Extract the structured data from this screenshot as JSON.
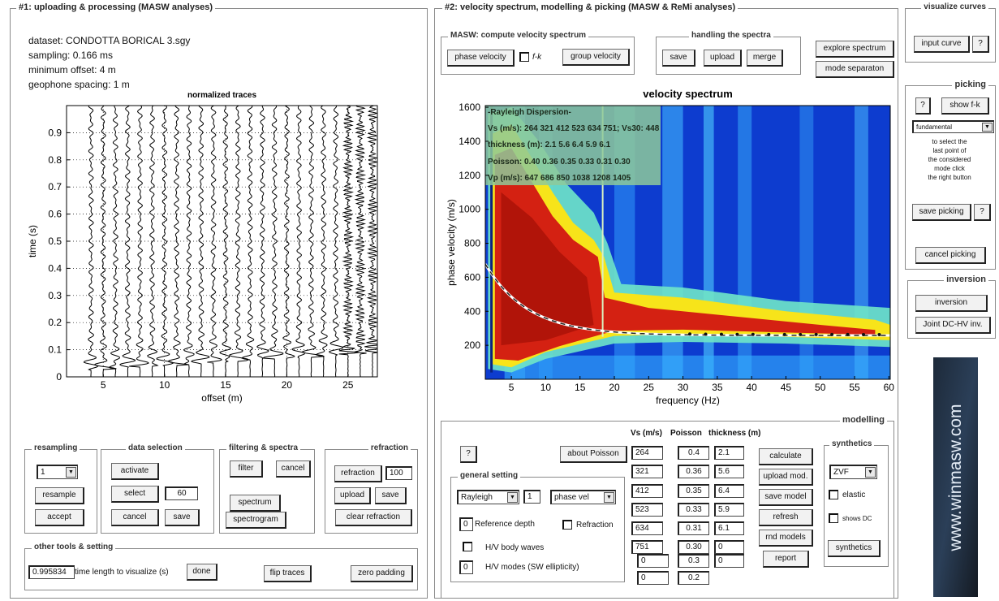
{
  "panel1": {
    "title": "#1: uploading & processing (MASW analyses)",
    "info": [
      "dataset: CONDOTTA BORICAL 3.sgy",
      "sampling: 0.166 ms",
      "minimum offset: 4 m",
      "geophone spacing: 1 m"
    ],
    "traces_plot": {
      "title": "normalized traces",
      "xlabel": "offset (m)",
      "ylabel": "time (s)",
      "xlim": [
        2,
        27.4
      ],
      "ylim": [
        0,
        1
      ],
      "xticks": [
        5,
        10,
        15,
        20,
        25
      ],
      "yticks": [
        0,
        0.1,
        0.2,
        0.3,
        0.4,
        0.5,
        0.6,
        0.7,
        0.8,
        0.9
      ]
    },
    "resampling": {
      "title": "resampling",
      "value": "1",
      "resample": "resample",
      "accept": "accept"
    },
    "data_selection": {
      "title": "data selection",
      "activate": "activate",
      "select": "select",
      "value": "60",
      "cancel": "cancel",
      "save": "save"
    },
    "filtering": {
      "title": "filtering & spectra",
      "filter": "filter",
      "cancel": "cancel",
      "spectrum": "spectrum",
      "spectrogram": "spectrogram"
    },
    "refraction": {
      "title": "refraction",
      "refraction": "refraction",
      "value": "100",
      "upload": "upload",
      "save": "save",
      "clear": "clear refraction"
    },
    "other_tools": {
      "title": "other tools & setting",
      "value": "0.995834",
      "label": "time length to visualize (s)",
      "done": "done",
      "flip": "flip traces",
      "zero_padding": "zero padding"
    }
  },
  "panel2": {
    "title": "#2: velocity spectrum, modelling & picking (MASW & ReMi analyses)",
    "masw": {
      "title": "MASW: compute velocity spectrum",
      "phase": "phase velocity",
      "fk": "f-k",
      "group": "group velocity"
    },
    "handling": {
      "title": "handling the spectra",
      "save": "save",
      "upload": "upload",
      "merge": "merge"
    },
    "explore": "explore spectrum",
    "mode_separation": "mode separaton",
    "spectrum_plot": {
      "title": "velocity spectrum",
      "xlabel": "frequency (Hz)",
      "ylabel": "phase velocity (m/s)",
      "xlim": [
        1.2,
        60.2
      ],
      "ylim": [
        0,
        1610
      ],
      "xticks": [
        5,
        10,
        15,
        20,
        25,
        30,
        35,
        40,
        45,
        50,
        55,
        60
      ],
      "yticks": [
        200,
        400,
        600,
        800,
        1000,
        1200,
        1400,
        1600
      ],
      "legend": [
        "-Rayleigh Dispersion-",
        "Vs (m/s): 264  321  412  523  634  751; Vs30: 448",
        "thickness (m): 2.1   5.6   6.4   5.9   6.1",
        "Poisson: 0.40  0.36  0.35  0.33  0.31  0.30",
        "Vp (m/s): 647  686  850 1038 1208 1405"
      ]
    },
    "modelling": {
      "title": "modelling",
      "help": "?",
      "about_poisson": "about Poisson",
      "headers": [
        "Vs (m/s)",
        "Poisson",
        "thickness (m)"
      ],
      "vs": [
        "264",
        "321",
        "412",
        "523",
        "634",
        "751",
        "0",
        "0"
      ],
      "poisson": [
        "0.4",
        "0.36",
        "0.35",
        "0.33",
        "0.31",
        "0.30",
        "0.3",
        "0.2"
      ],
      "thickness": [
        "2.1",
        "5.6",
        "6.4",
        "5.9",
        "6.1",
        "0",
        "0"
      ],
      "general": {
        "title": "general setting",
        "wave": "Rayleigh",
        "mode": "1",
        "quantity": "phase vel",
        "ref_depth_value": "0",
        "ref_depth": "Reference depth",
        "refraction": "Refraction",
        "hv_body": "H/V body waves",
        "hv_modes_value": "0",
        "hv_modes": "H/V modes (SW ellipticity)"
      },
      "actions": [
        "calculate",
        "upload mod.",
        "save model",
        "refresh",
        "rnd models",
        "report"
      ],
      "synthetics": {
        "title": "synthetics",
        "component": "ZVF",
        "elastic": "elastic",
        "shows_dc": "shows DC",
        "button": "synthetics"
      }
    }
  },
  "panel3": {
    "visualize": {
      "title": "visualize curves",
      "input": "input curve",
      "help": "?"
    },
    "picking": {
      "title": "picking",
      "help": "?",
      "show_fk": "show f-k",
      "mode": "fundamental",
      "hint": [
        "to select the",
        "last point of",
        "the considered",
        "mode click",
        "the right button"
      ],
      "save": "save picking",
      "help2": "?",
      "cancel": "cancel picking"
    },
    "inversion": {
      "title": "inversion",
      "inversion": "inversion",
      "joint": "Joint DC-HV inv."
    },
    "logo": "www.winmasw.com"
  }
}
